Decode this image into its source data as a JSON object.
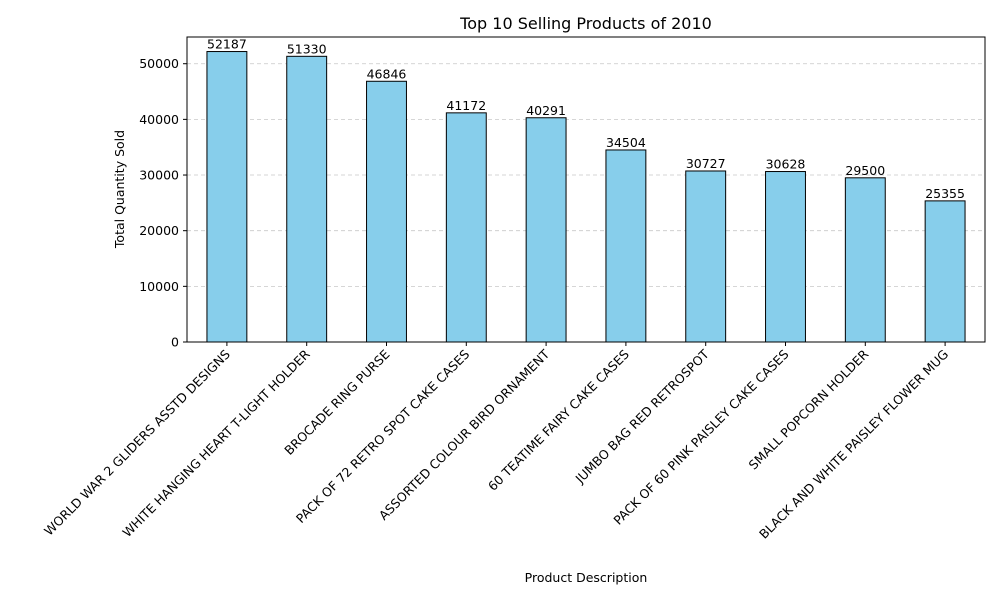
{
  "chart_data": {
    "type": "bar",
    "title": "Top 10 Selling Products of 2010",
    "xlabel": "Product Description",
    "ylabel": "Total Quantity Sold",
    "categories": [
      "WORLD WAR 2 GLIDERS ASSTD DESIGNS",
      "WHITE HANGING HEART T-LIGHT HOLDER",
      "BROCADE RING PURSE",
      "PACK OF 72 RETRO SPOT CAKE CASES",
      "ASSORTED COLOUR BIRD ORNAMENT",
      "60 TEATIME FAIRY CAKE CASES",
      "JUMBO BAG RED RETROSPOT",
      "PACK OF 60 PINK PAISLEY CAKE CASES",
      "SMALL POPCORN HOLDER",
      "BLACK AND WHITE PAISLEY FLOWER MUG"
    ],
    "values": [
      52187,
      51330,
      46846,
      41172,
      40291,
      34504,
      30727,
      30628,
      29500,
      25355
    ],
    "data_labels": [
      "52187",
      "51330",
      "46846",
      "41172",
      "40291",
      "34504",
      "30727",
      "30628",
      "29500",
      "25355"
    ],
    "ylim": [
      0,
      54800
    ],
    "yticks": [
      0,
      10000,
      20000,
      30000,
      40000,
      50000
    ],
    "ytick_labels": [
      "0",
      "10000",
      "20000",
      "30000",
      "40000",
      "50000"
    ],
    "grid": "y-dashed",
    "bar_color": "#87ceeb",
    "bar_edge_color": "#000000",
    "grid_color": "#c8c8c8"
  }
}
